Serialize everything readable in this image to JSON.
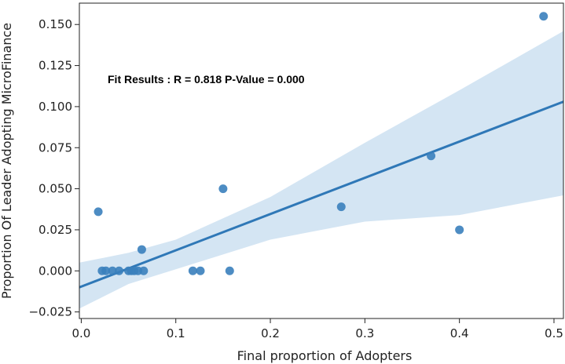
{
  "chart_data": {
    "type": "scatter",
    "title": "",
    "xlabel": "Final proportion of Adopters",
    "ylabel": "Proportion Of Leader Adopting MicroFinance",
    "xlim": [
      -0.002,
      0.51
    ],
    "ylim": [
      -0.029,
      0.163
    ],
    "x_ticks": [
      0.0,
      0.1,
      0.2,
      0.3,
      0.4,
      0.5
    ],
    "x_tick_labels": [
      "0.0",
      "0.1",
      "0.2",
      "0.3",
      "0.4",
      "0.5"
    ],
    "y_ticks": [
      -0.025,
      0.0,
      0.025,
      0.05,
      0.075,
      0.1,
      0.125,
      0.15
    ],
    "y_tick_labels": [
      "−0.025",
      "0.000",
      "0.025",
      "0.050",
      "0.075",
      "0.100",
      "0.125",
      "0.150"
    ],
    "grid": false,
    "annotation": "Fit Results : R = 0.818  P-Value = 0.000",
    "colors": {
      "points": "#3a7fbd",
      "fit_line": "#2f78b7",
      "confidence_band": "#c6dcef"
    },
    "points": [
      {
        "x": 0.018,
        "y": 0.036
      },
      {
        "x": 0.022,
        "y": 0.0
      },
      {
        "x": 0.026,
        "y": 0.0
      },
      {
        "x": 0.033,
        "y": 0.0
      },
      {
        "x": 0.04,
        "y": 0.0
      },
      {
        "x": 0.05,
        "y": 0.0
      },
      {
        "x": 0.053,
        "y": 0.0
      },
      {
        "x": 0.056,
        "y": 0.0
      },
      {
        "x": 0.06,
        "y": 0.0
      },
      {
        "x": 0.064,
        "y": 0.013
      },
      {
        "x": 0.066,
        "y": 0.0
      },
      {
        "x": 0.118,
        "y": 0.0
      },
      {
        "x": 0.126,
        "y": 0.0
      },
      {
        "x": 0.15,
        "y": 0.05
      },
      {
        "x": 0.157,
        "y": 0.0
      },
      {
        "x": 0.275,
        "y": 0.039
      },
      {
        "x": 0.37,
        "y": 0.07
      },
      {
        "x": 0.4,
        "y": 0.025
      },
      {
        "x": 0.489,
        "y": 0.155
      }
    ],
    "fit_line": {
      "x": [
        -0.002,
        0.51
      ],
      "y": [
        -0.01,
        0.103
      ]
    },
    "confidence_band": {
      "x": [
        -0.002,
        0.05,
        0.1,
        0.2,
        0.3,
        0.4,
        0.51
      ],
      "upper": [
        0.005,
        0.011,
        0.019,
        0.045,
        0.078,
        0.11,
        0.146
      ],
      "lower": [
        -0.023,
        -0.008,
        0.001,
        0.019,
        0.03,
        0.034,
        0.046
      ]
    }
  }
}
